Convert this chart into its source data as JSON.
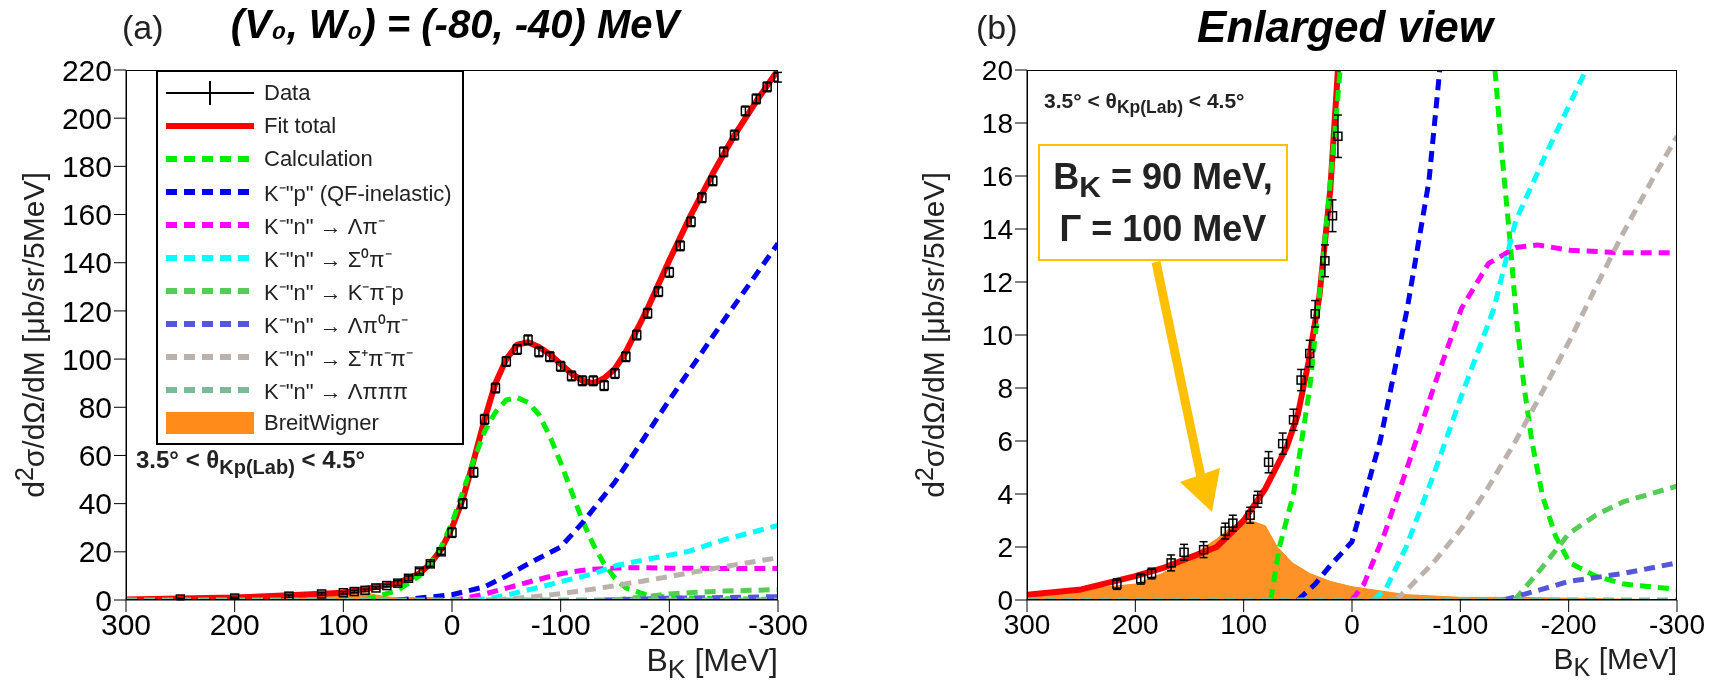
{
  "chart_data": [
    {
      "type": "line",
      "title": "(V₀, W₀) = (-80, -40) MeV",
      "xlabel": "B$_{K}$ [MeV]",
      "ylabel": "d$^{2}$σ/dΩ/dM [μb/sr/5MeV]",
      "annotations": [
        "(a)",
        "3.5° < θ$_{Kp(Lab)}$ < 4.5°"
      ],
      "xlim": [
        300,
        -300
      ],
      "xticks": [
        300,
        200,
        100,
        0,
        -100,
        -200,
        -300
      ],
      "ylim": [
        0,
        220
      ],
      "yticks": [
        0,
        20,
        40,
        60,
        80,
        100,
        120,
        140,
        160,
        180,
        200,
        220
      ],
      "legend": "top left",
      "series": [
        {
          "name": "Data",
          "type": "scatter",
          "marker": "square",
          "color": "#000000",
          "x": [
            250,
            200,
            150,
            120,
            100,
            90,
            80,
            70,
            60,
            50,
            40,
            30,
            20,
            10,
            0,
            -10,
            -20,
            -30,
            -40,
            -50,
            -60,
            -70,
            -80,
            -90,
            -100,
            -110,
            -120,
            -130,
            -140,
            -150,
            -160,
            -170,
            -180,
            -190,
            -200,
            -210,
            -220,
            -230,
            -240,
            -250,
            -260,
            -270,
            -280,
            -290,
            -300
          ],
          "values": [
            0.4,
            0.8,
            1.6,
            2.5,
            3,
            3.5,
            4,
            5,
            6,
            7,
            9,
            12,
            15,
            20,
            28,
            40,
            53,
            75,
            88,
            99,
            104,
            108,
            103,
            101,
            97,
            93,
            91,
            91,
            89,
            94,
            101,
            110,
            119,
            128,
            136,
            147,
            157,
            167,
            174,
            186,
            193,
            203,
            208,
            213,
            217
          ],
          "errors": [
            0.3,
            0.3,
            0.5,
            0.5,
            0.5,
            0.5,
            0.5,
            0.5,
            0.5,
            1,
            1,
            1,
            1,
            1,
            2,
            2,
            2,
            2,
            2,
            2,
            2,
            2,
            2,
            2,
            2,
            2,
            2,
            2,
            2,
            2,
            2,
            2,
            2,
            2,
            2,
            2,
            2,
            2,
            2,
            2,
            2,
            2,
            2,
            2,
            2
          ]
        },
        {
          "name": "Fit total",
          "line_style": "solid",
          "color": "#ff0000",
          "x": [
            300,
            200,
            150,
            100,
            50,
            30,
            20,
            10,
            0,
            -10,
            -20,
            -30,
            -40,
            -50,
            -60,
            -70,
            -80,
            -90,
            -100,
            -110,
            -120,
            -130,
            -140,
            -150,
            -160,
            -180,
            -200,
            -220,
            -240,
            -260,
            -280,
            -300
          ],
          "values": [
            0.2,
            1,
            2,
            3,
            7,
            11,
            15,
            21,
            30,
            42,
            58,
            75,
            90,
            100,
            106,
            107,
            105,
            102,
            98,
            94,
            91,
            90,
            92,
            96,
            103,
            121,
            141,
            160,
            177,
            193,
            207,
            220
          ]
        },
        {
          "name": "Calculation",
          "line_style": "dashed",
          "color": "#00ee00",
          "x": [
            80,
            50,
            30,
            20,
            10,
            0,
            -10,
            -20,
            -30,
            -40,
            -50,
            -60,
            -70,
            -80,
            -90,
            -100,
            -110,
            -120,
            -130,
            -140,
            -150,
            -160,
            -180,
            -200,
            -250,
            -300
          ],
          "values": [
            0,
            4,
            10,
            15,
            22,
            32,
            45,
            58,
            70,
            78,
            83,
            84,
            82,
            77,
            68,
            57,
            45,
            33,
            23,
            15,
            9,
            5,
            2,
            1,
            0.5,
            0.3
          ]
        },
        {
          "name": "K⁻\"p\" (QF-inelastic)",
          "line_style": "dashed",
          "color": "#0000ee",
          "x": [
            50,
            30,
            0,
            -30,
            -50,
            -70,
            -100,
            -120,
            -150,
            -175,
            -200,
            -250,
            -300
          ],
          "values": [
            0,
            0.8,
            2.2,
            5.5,
            10,
            15,
            22,
            32,
            49,
            66,
            83,
            116,
            148
          ]
        },
        {
          "name": "K⁻\"n\" → Λπ⁻",
          "line_style": "dashed",
          "color": "#ff00ff",
          "x": [
            0,
            -11,
            -30,
            -51,
            -76,
            -101,
            -126,
            -151,
            -171,
            -201,
            -250,
            -300
          ],
          "values": [
            0,
            0.6,
            2.5,
            5,
            8.1,
            11,
            12.7,
            13.3,
            13.4,
            13.2,
            13.1,
            13.1
          ]
        },
        {
          "name": "K⁻\"n\" → Σ⁰π⁻",
          "line_style": "dashed",
          "color": "#00ffff",
          "x": [
            -20,
            -31,
            -50,
            -76,
            -101,
            -131,
            -151,
            -181,
            -216,
            -250,
            -300
          ],
          "values": [
            0,
            0.4,
            2,
            4.8,
            7.7,
            11,
            14.3,
            17,
            20,
            25,
            31
          ]
        },
        {
          "name": "K⁻\"n\" → K⁻π⁻p",
          "line_style": "dashed",
          "color": "#55cc55",
          "x": [
            -150,
            -175,
            -200,
            -225,
            -250,
            -275,
            -300
          ],
          "values": [
            0,
            1.2,
            2.5,
            3.2,
            3.7,
            4,
            4.3
          ]
        },
        {
          "name": "K⁻\"n\" → Λπ⁰π⁻",
          "line_style": "dashed",
          "color": "#5555dd",
          "x": [
            -140,
            -175,
            -200,
            -250,
            -300
          ],
          "values": [
            0,
            0.4,
            0.7,
            1,
            1.4
          ]
        },
        {
          "name": "K⁻\"n\" → Σ⁺π⁻π⁻",
          "line_style": "dashed",
          "color": "#bbb3ab",
          "x": [
            -40,
            -51,
            -75,
            -101,
            -125,
            -151,
            -175,
            -201,
            -225,
            -251,
            -275,
            -300
          ],
          "values": [
            0,
            0.4,
            1.4,
            2.7,
            4.2,
            6,
            7.8,
            9.8,
            11.8,
            13.9,
            15.7,
            17.5
          ]
        },
        {
          "name": "K⁻\"n\" → Λπππ",
          "line_style": "dashed",
          "color": "#77bb99",
          "x": [
            300,
            0,
            -300
          ],
          "values": [
            0,
            0,
            0
          ]
        },
        {
          "name": "BreitWigner",
          "type": "area",
          "color": "#ff8c1a",
          "x": [
            300,
            250,
            200,
            175,
            150,
            125,
            110,
            94,
            80,
            69,
            55,
            39,
            20,
            0,
            -50,
            -100,
            -150,
            -300
          ],
          "values": [
            0,
            0,
            1,
            1,
            2,
            2,
            3,
            3,
            3,
            2,
            1,
            1,
            1,
            0,
            0,
            0,
            0,
            0
          ]
        }
      ]
    },
    {
      "type": "line",
      "title": "Enlarged view",
      "xlabel": "B$_{K}$ [MeV]",
      "ylabel": "d$^{2}$σ/dΩ/dM [μb/sr/5MeV]",
      "annotations": [
        "(b)",
        "3.5° < θ$_{Kp(Lab)}$ < 4.5°",
        "B$_{K}$ = 90 MeV, Γ = 100 MeV"
      ],
      "xlim": [
        300,
        -300
      ],
      "xticks": [
        300,
        200,
        100,
        0,
        -100,
        -200,
        -300
      ],
      "ylim": [
        0,
        20
      ],
      "yticks": [
        0,
        2,
        4,
        6,
        8,
        10,
        12,
        14,
        16,
        18,
        20
      ],
      "series": [
        {
          "type": "scatter",
          "marker": "square",
          "color": "#000000",
          "x": [
            217,
            195,
            185,
            167,
            155,
            137,
            117,
            110,
            94,
            87,
            77,
            64,
            54,
            47,
            39,
            34,
            25,
            18,
            13
          ],
          "values": [
            0.6,
            0.8,
            1,
            1.4,
            1.8,
            1.9,
            2.6,
            2.9,
            3.2,
            3.8,
            5.2,
            5.9,
            6.8,
            8.3,
            9.3,
            10.8,
            12.8,
            14.5,
            17.5
          ],
          "errors": [
            0.2,
            0.2,
            0.2,
            0.3,
            0.3,
            0.3,
            0.3,
            0.3,
            0.3,
            0.3,
            0.4,
            0.4,
            0.4,
            0.4,
            0.5,
            0.5,
            0.6,
            0.6,
            0.8
          ]
        },
        {
          "line_style": "solid",
          "color": "#ff0000",
          "x": [
            300,
            250,
            200,
            175,
            150,
            125,
            100,
            90,
            80,
            70,
            60,
            50,
            40,
            30,
            20,
            13
          ],
          "values": [
            0.2,
            0.4,
            0.9,
            1.2,
            1.6,
            2,
            3,
            3.6,
            4.2,
            5,
            5.8,
            7,
            9,
            11.5,
            15.5,
            20
          ]
        },
        {
          "line_style": "dashed",
          "color": "#00ee00",
          "x": [
            75,
            67,
            54,
            39,
            27,
            14,
            11,
            0,
            -132,
            -138,
            -146,
            -152,
            -159,
            -166,
            -176,
            -188,
            -201,
            -225,
            -251,
            -300
          ],
          "values": [
            0,
            2,
            4,
            8,
            12.7,
            18.5,
            20,
            null,
            20,
            17,
            13.5,
            10.5,
            8,
            6,
            3.9,
            2.4,
            1.4,
            0.9,
            0.6,
            0.4
          ]
        },
        {
          "line_style": "dashed",
          "color": "#0000ee",
          "x": [
            50,
            34,
            20,
            0,
            -26,
            -51,
            -71,
            -81
          ],
          "values": [
            0,
            0.6,
            1.3,
            2.2,
            6,
            11,
            15.8,
            20
          ]
        },
        {
          "line_style": "dashed",
          "color": "#ff00ff",
          "x": [
            0,
            -11,
            -30,
            -51,
            -76,
            -101,
            -126,
            -151,
            -171,
            -201,
            -250,
            -300
          ],
          "values": [
            0,
            0.6,
            2.5,
            5,
            8.1,
            11,
            12.7,
            13.3,
            13.4,
            13.2,
            13.1,
            13.1
          ]
        },
        {
          "line_style": "dashed",
          "color": "#00ffff",
          "x": [
            -20,
            -31,
            -50,
            -76,
            -101,
            -131,
            -151,
            -181,
            -216
          ],
          "values": [
            0,
            0.4,
            2,
            4.8,
            7.7,
            11,
            14.3,
            17,
            20
          ]
        },
        {
          "line_style": "dashed",
          "color": "#55cc55",
          "x": [
            -150,
            -175,
            -200,
            -225,
            -250,
            -275,
            -300
          ],
          "values": [
            0,
            1.2,
            2.5,
            3.2,
            3.7,
            4,
            4.3
          ]
        },
        {
          "line_style": "dashed",
          "color": "#5555dd",
          "x": [
            -140,
            -175,
            -200,
            -250,
            -300
          ],
          "values": [
            0,
            0.4,
            0.7,
            1,
            1.4
          ]
        },
        {
          "line_style": "dashed",
          "color": "#bbb3ab",
          "x": [
            -40,
            -51,
            -75,
            -101,
            -125,
            -151,
            -175,
            -201,
            -225,
            -251,
            -275,
            -300
          ],
          "values": [
            0,
            0.4,
            1.4,
            2.7,
            4.2,
            6,
            7.8,
            9.8,
            11.8,
            13.9,
            15.7,
            17.5
          ]
        },
        {
          "line_style": "dashed",
          "color": "#77bb99",
          "x": [
            300,
            0,
            -300
          ],
          "values": [
            0,
            0,
            0
          ]
        },
        {
          "type": "area",
          "color": "#ff8c1a",
          "x": [
            300,
            250,
            200,
            175,
            150,
            125,
            110,
            94,
            80,
            69,
            55,
            39,
            20,
            0,
            -50,
            -100,
            -150,
            -300
          ],
          "values": [
            0.2,
            0.4,
            0.6,
            1,
            1.6,
            2.3,
            2.8,
            3,
            2.8,
            2,
            1.4,
            1,
            0.7,
            0.5,
            0.2,
            0.1,
            0.1,
            0
          ]
        }
      ]
    }
  ]
}
